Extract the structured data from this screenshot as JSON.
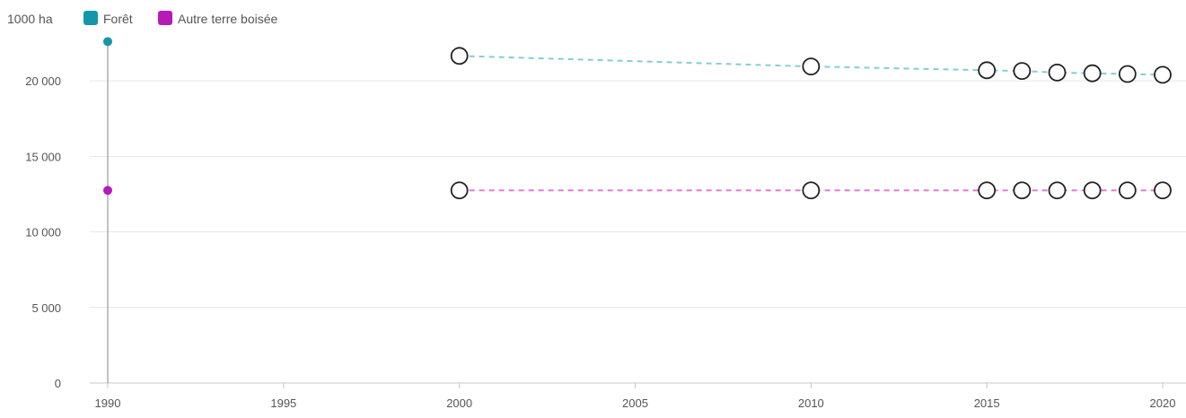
{
  "chart_data": {
    "type": "line",
    "unit_label": "1000 ha",
    "x": [
      1990,
      2000,
      2010,
      2015,
      2016,
      2017,
      2018,
      2019,
      2020
    ],
    "x_ticks": [
      "1990",
      "1995",
      "2000",
      "2005",
      "2010",
      "2015",
      "2020"
    ],
    "y_ticks": [
      "0",
      "5 000",
      "10 000",
      "15 000",
      "20 000"
    ],
    "xlim": [
      1990,
      2020
    ],
    "ylim": [
      0,
      22500
    ],
    "grid": true,
    "legend_position": "top-left",
    "series": [
      {
        "name": "Forêt",
        "color": "#1497a8",
        "line_color": "#84cdd6",
        "values": [
          22600,
          21650,
          20950,
          20700,
          20650,
          20550,
          20500,
          20450,
          20400
        ]
      },
      {
        "name": "Autre terre boisée",
        "color": "#b81ab8",
        "line_color": "#e07ad7",
        "values": [
          12750,
          12750,
          12750,
          12750,
          12750,
          12750,
          12750,
          12750,
          12750
        ]
      }
    ]
  }
}
